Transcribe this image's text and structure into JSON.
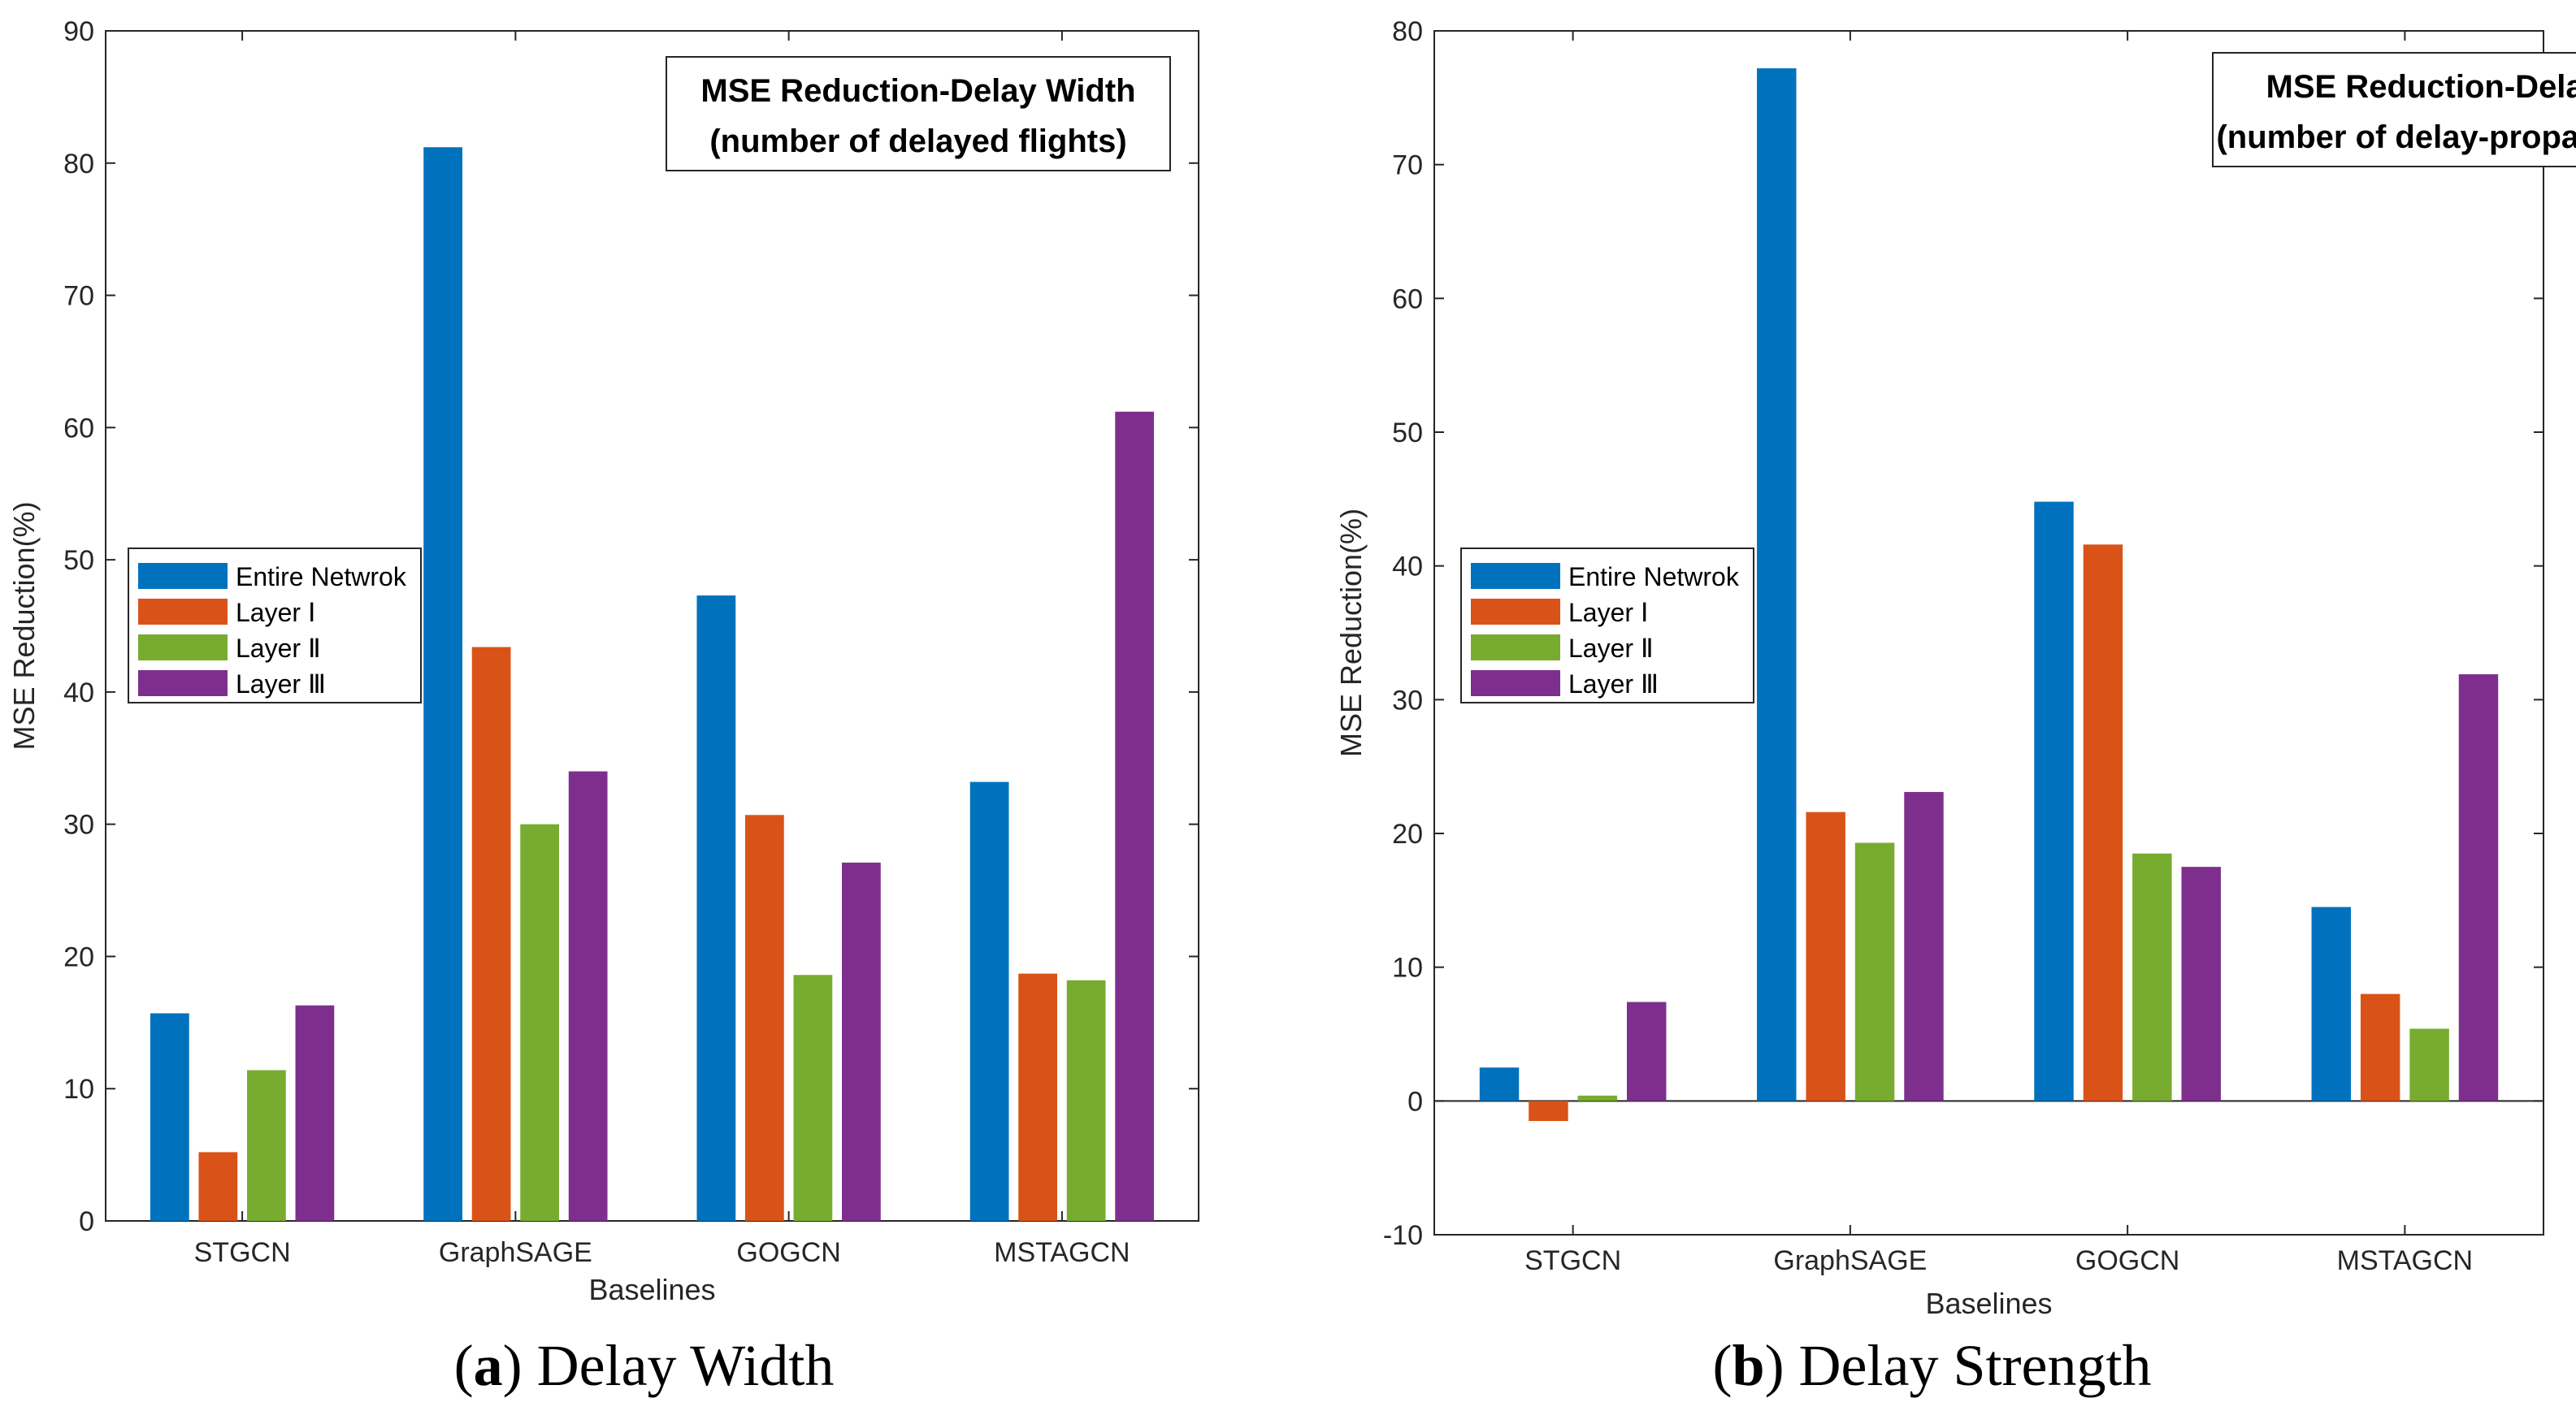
{
  "chart_data": [
    {
      "type": "bar",
      "title": [
        "MSE Reduction-Delay Width",
        "(number of delayed flights)"
      ],
      "xlabel": "Baselines",
      "ylabel": "MSE Reduction(%)",
      "ylim": [
        0,
        90
      ],
      "yticks": [
        0,
        10,
        20,
        30,
        40,
        50,
        60,
        70,
        80,
        90
      ],
      "categories": [
        "STGCN",
        "GraphSAGE",
        "GOGCN",
        "MSTAGCN"
      ],
      "legend_position": "middle-left",
      "series": [
        {
          "name": "Entire Netwrok",
          "color": "#0072BD",
          "values": [
            15.7,
            81.2,
            47.3,
            33.2
          ]
        },
        {
          "name": "Layer Ⅰ",
          "color": "#D95319",
          "values": [
            5.2,
            43.4,
            30.7,
            18.7
          ]
        },
        {
          "name": "Layer Ⅱ",
          "color": "#77AC30",
          "values": [
            11.4,
            30.0,
            18.6,
            18.2
          ]
        },
        {
          "name": "Layer Ⅲ",
          "color": "#7E2F8E",
          "values": [
            16.3,
            34.0,
            27.1,
            61.2
          ]
        }
      ],
      "caption": {
        "letter": "a",
        "text": "Delay Width"
      }
    },
    {
      "type": "bar",
      "title": [
        "MSE Reduction-Delay Strength",
        "(number of delay-propagating flights)"
      ],
      "xlabel": "Baselines",
      "ylabel": "MSE Reduction(%)",
      "ylim": [
        -10,
        80
      ],
      "yticks": [
        -10,
        0,
        10,
        20,
        30,
        40,
        50,
        60,
        70,
        80
      ],
      "categories": [
        "STGCN",
        "GraphSAGE",
        "GOGCN",
        "MSTAGCN"
      ],
      "legend_position": "middle-left",
      "series": [
        {
          "name": "Entire Netwrok",
          "color": "#0072BD",
          "values": [
            2.5,
            77.2,
            44.8,
            14.5
          ]
        },
        {
          "name": "Layer Ⅰ",
          "color": "#D95319",
          "values": [
            -1.5,
            21.6,
            41.6,
            8.0
          ]
        },
        {
          "name": "Layer Ⅱ",
          "color": "#77AC30",
          "values": [
            0.4,
            19.3,
            18.5,
            5.4
          ]
        },
        {
          "name": "Layer Ⅲ",
          "color": "#7E2F8E",
          "values": [
            7.4,
            23.1,
            17.5,
            31.9
          ]
        }
      ],
      "caption": {
        "letter": "b",
        "text": "Delay Strength"
      }
    }
  ]
}
